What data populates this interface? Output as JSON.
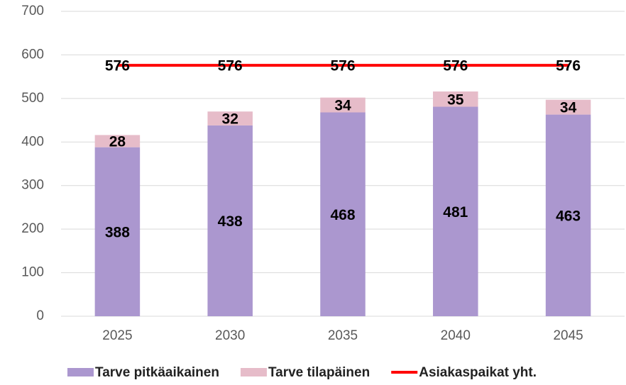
{
  "chart_data": {
    "type": "bar",
    "stacked": true,
    "categories": [
      "2025",
      "2030",
      "2035",
      "2040",
      "2045"
    ],
    "series": [
      {
        "name": "Tarve pitkäaikainen",
        "type": "bar",
        "color": "#ab97cf",
        "values": [
          388,
          438,
          468,
          481,
          463
        ]
      },
      {
        "name": "Tarve tilapäinen",
        "type": "bar",
        "color": "#e6bcc9",
        "values": [
          28,
          32,
          34,
          35,
          34
        ]
      },
      {
        "name": "Asiakaspaikat yht.",
        "type": "line",
        "color": "#ff0000",
        "values": [
          576,
          576,
          576,
          576,
          576
        ]
      }
    ],
    "ylim": [
      0,
      700
    ],
    "yticks": [
      0,
      100,
      200,
      300,
      400,
      500,
      600,
      700
    ],
    "grid": true,
    "legend": "bottom"
  }
}
